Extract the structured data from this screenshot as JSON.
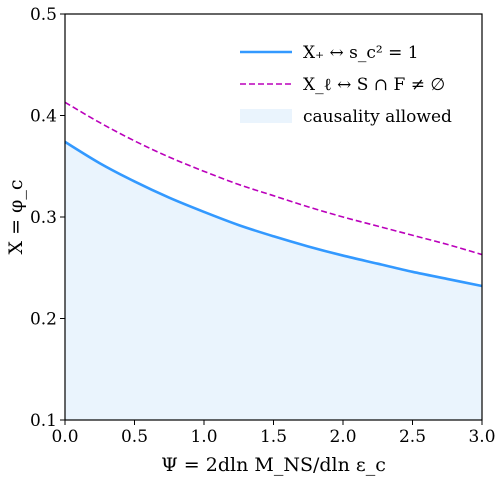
{
  "chart_data": {
    "type": "line",
    "title": "",
    "xlabel": "Ψ = 2dln M_NS/dln ε_c",
    "ylabel": "X = φ_c",
    "xlim": [
      0.0,
      3.0
    ],
    "ylim": [
      0.1,
      0.5
    ],
    "xticks": [
      "0.0",
      "0.5",
      "1.0",
      "1.5",
      "2.0",
      "2.5",
      "3.0"
    ],
    "yticks": [
      "0.1",
      "0.2",
      "0.3",
      "0.4",
      "0.5"
    ],
    "grid": false,
    "legend_position": "top-right",
    "series": [
      {
        "name": "X₊ ↔ s_c² = 1",
        "style": "solid",
        "color": "#3399ff",
        "x": [
          0.0,
          0.25,
          0.5,
          0.75,
          1.0,
          1.25,
          1.5,
          1.75,
          2.0,
          2.25,
          2.5,
          2.75,
          3.0
        ],
        "y": [
          0.374,
          0.353,
          0.335,
          0.319,
          0.305,
          0.292,
          0.281,
          0.271,
          0.262,
          0.254,
          0.246,
          0.239,
          0.232
        ]
      },
      {
        "name": "X_ℓ ↔ S ∩ F ≠ ∅",
        "style": "dashed",
        "color": "#bb00bb",
        "x": [
          0.0,
          0.25,
          0.5,
          0.75,
          1.0,
          1.25,
          1.5,
          1.75,
          2.0,
          2.25,
          2.5,
          2.75,
          3.0
        ],
        "y": [
          0.413,
          0.393,
          0.375,
          0.359,
          0.345,
          0.332,
          0.321,
          0.31,
          0.3,
          0.291,
          0.282,
          0.273,
          0.263
        ]
      }
    ],
    "shaded_region": {
      "name": "causality allowed",
      "color": "#eaf4fd",
      "below_series": 0
    }
  }
}
